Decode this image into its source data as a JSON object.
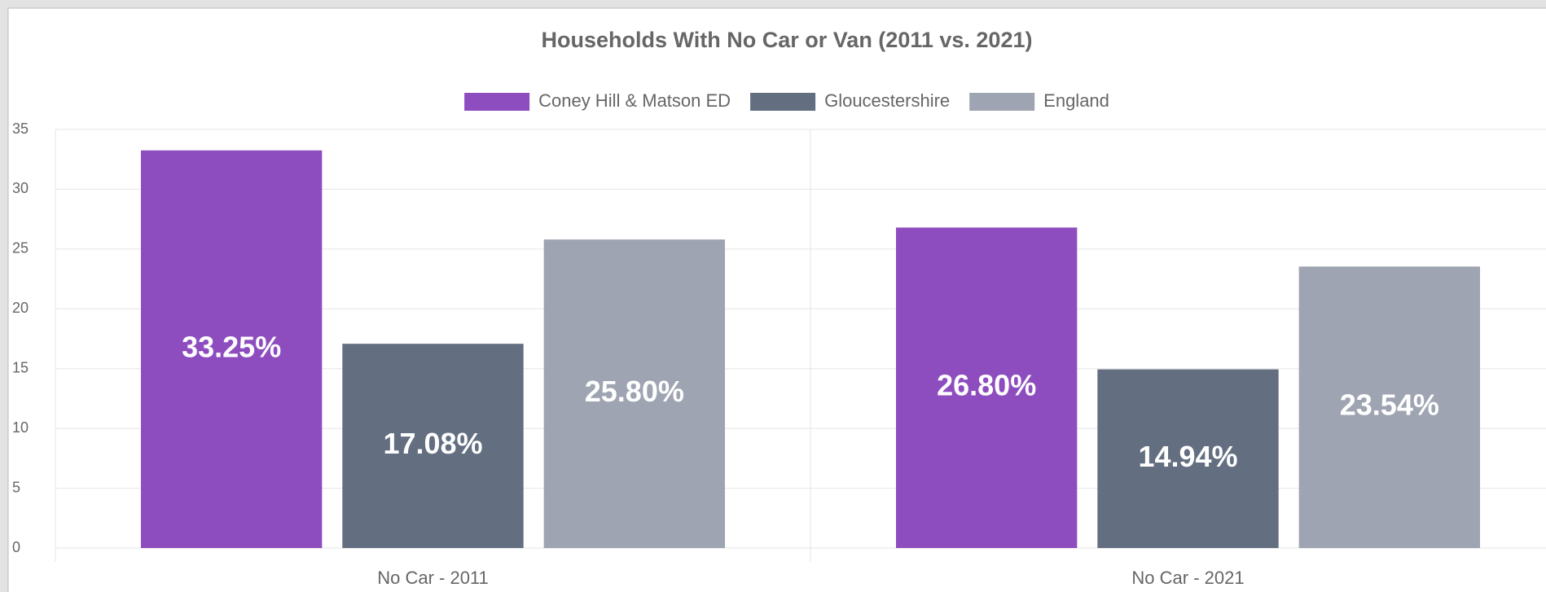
{
  "chart_data": {
    "type": "bar",
    "title": "Households With No Car or Van (2011 vs. 2021)",
    "categories": [
      "No Car - 2011",
      "No Car - 2021"
    ],
    "series": [
      {
        "name": "Coney Hill & Matson ED",
        "color": "#8e4dbf",
        "values": [
          33.25,
          26.8
        ],
        "value_labels": [
          "33.25%",
          "26.80%"
        ]
      },
      {
        "name": "Gloucestershire",
        "color": "#636e80",
        "values": [
          17.08,
          14.94
        ],
        "value_labels": [
          "17.08%",
          "14.94%"
        ]
      },
      {
        "name": "England",
        "color": "#9ea4b1",
        "values": [
          25.8,
          23.54
        ],
        "value_labels": [
          "25.80%",
          "23.54%"
        ]
      }
    ],
    "ylim": [
      0,
      35
    ],
    "yticks": [
      0,
      5,
      10,
      15,
      20,
      25,
      30,
      35
    ],
    "grid": true,
    "legend": "top"
  }
}
